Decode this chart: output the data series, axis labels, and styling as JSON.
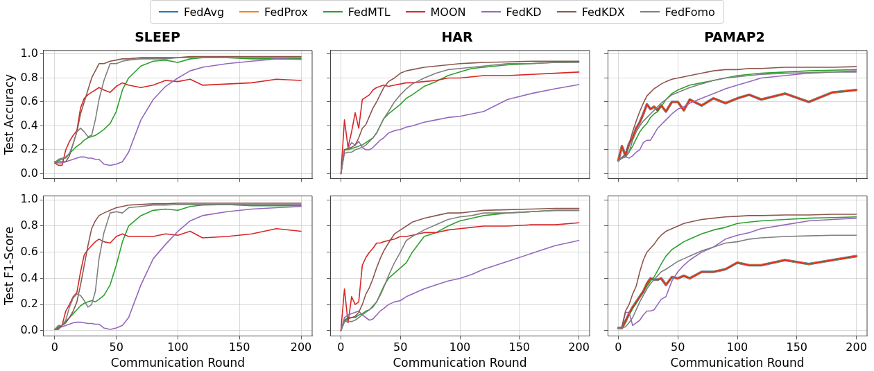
{
  "chart_data": [
    {
      "type": "line",
      "title": "SLEEP",
      "ylabel": "Test Accuracy",
      "grid": true,
      "tick_labels": "y",
      "xlim": [
        -9,
        209
      ],
      "xticks": [
        0,
        50,
        100,
        150,
        200
      ],
      "ylim": [
        -0.04,
        1.03
      ],
      "yticks": [
        {
          "value": 0,
          "label": "0.0"
        },
        {
          "value": 0.2,
          "label": "0.2"
        },
        {
          "value": 0.4,
          "label": "0.4"
        },
        {
          "value": 0.6,
          "label": "0.6"
        },
        {
          "value": 0.8,
          "label": "0.8"
        },
        {
          "value": 1,
          "label": "1.0"
        }
      ],
      "x": [
        0,
        3,
        6,
        9,
        12,
        15,
        18,
        21,
        24,
        27,
        30,
        33,
        36,
        40,
        45,
        50,
        55,
        60,
        70,
        80,
        90,
        100,
        110,
        120,
        140,
        160,
        180,
        200
      ],
      "series": [
        {
          "color": "#2ca02c",
          "values": [
            0.1,
            0.11,
            0.12,
            0.14,
            0.17,
            0.2,
            0.23,
            0.25,
            0.28,
            0.3,
            0.31,
            0.32,
            0.34,
            0.37,
            0.42,
            0.52,
            0.7,
            0.8,
            0.9,
            0.94,
            0.95,
            0.93,
            0.96,
            0.97,
            0.97,
            0.96,
            0.96,
            0.96
          ]
        },
        {
          "color": "#d62728",
          "values": [
            0.09,
            0.07,
            0.07,
            0.2,
            0.27,
            0.32,
            0.36,
            0.55,
            0.63,
            0.66,
            0.68,
            0.7,
            0.72,
            0.7,
            0.68,
            0.73,
            0.76,
            0.74,
            0.72,
            0.74,
            0.78,
            0.77,
            0.79,
            0.74,
            0.75,
            0.76,
            0.79,
            0.78
          ]
        },
        {
          "color": "#9467bd",
          "values": [
            0.09,
            0.09,
            0.09,
            0.1,
            0.11,
            0.12,
            0.13,
            0.14,
            0.14,
            0.13,
            0.13,
            0.12,
            0.12,
            0.08,
            0.07,
            0.08,
            0.1,
            0.18,
            0.45,
            0.62,
            0.73,
            0.8,
            0.86,
            0.89,
            0.92,
            0.94,
            0.96,
            0.955
          ]
        },
        {
          "color": "#8c564b",
          "values": [
            0.09,
            0.1,
            0.1,
            0.1,
            0.15,
            0.25,
            0.35,
            0.5,
            0.6,
            0.7,
            0.8,
            0.86,
            0.92,
            0.92,
            0.94,
            0.95,
            0.96,
            0.96,
            0.97,
            0.97,
            0.97,
            0.97,
            0.98,
            0.98,
            0.98,
            0.98,
            0.98,
            0.98
          ]
        },
        {
          "color": "#7f7f7f",
          "values": [
            0.09,
            0.12,
            0.13,
            0.13,
            0.17,
            0.25,
            0.35,
            0.38,
            0.35,
            0.31,
            0.32,
            0.45,
            0.62,
            0.78,
            0.92,
            0.92,
            0.94,
            0.95,
            0.96,
            0.96,
            0.96,
            0.97,
            0.97,
            0.97,
            0.97,
            0.97,
            0.97,
            0.97
          ]
        }
      ]
    },
    {
      "type": "line",
      "title": "HAR",
      "grid": true,
      "tick_labels": false,
      "xlim": [
        -9,
        209
      ],
      "xticks": [
        0,
        50,
        100,
        150,
        200
      ],
      "ylim": [
        -0.04,
        1.03
      ],
      "yticks": [
        0,
        0.2,
        0.4,
        0.6,
        0.8,
        1
      ],
      "x": [
        0,
        3,
        6,
        9,
        12,
        15,
        18,
        21,
        24,
        27,
        30,
        33,
        36,
        40,
        45,
        50,
        55,
        60,
        70,
        80,
        90,
        100,
        110,
        120,
        140,
        160,
        180,
        200
      ],
      "series": [
        {
          "color": "#2ca02c",
          "values": [
            0,
            0.2,
            0.2,
            0.21,
            0.22,
            0.23,
            0.24,
            0.26,
            0.28,
            0.3,
            0.34,
            0.4,
            0.46,
            0.5,
            0.54,
            0.58,
            0.63,
            0.66,
            0.73,
            0.77,
            0.82,
            0.85,
            0.88,
            0.89,
            0.91,
            0.92,
            0.93,
            0.935
          ]
        },
        {
          "color": "#d62728",
          "values": [
            0,
            0.45,
            0.22,
            0.35,
            0.51,
            0.38,
            0.62,
            0.64,
            0.66,
            0.7,
            0.72,
            0.73,
            0.74,
            0.73,
            0.74,
            0.75,
            0.76,
            0.76,
            0.77,
            0.78,
            0.8,
            0.8,
            0.81,
            0.82,
            0.82,
            0.83,
            0.84,
            0.85
          ]
        },
        {
          "color": "#9467bd",
          "values": [
            0,
            0.2,
            0.21,
            0.26,
            0.24,
            0.27,
            0.22,
            0.2,
            0.2,
            0.22,
            0.25,
            0.28,
            0.3,
            0.34,
            0.36,
            0.37,
            0.39,
            0.4,
            0.43,
            0.45,
            0.47,
            0.48,
            0.5,
            0.52,
            0.62,
            0.67,
            0.71,
            0.745
          ]
        },
        {
          "color": "#8c564b",
          "values": [
            0,
            0.2,
            0.21,
            0.22,
            0.24,
            0.3,
            0.38,
            0.41,
            0.48,
            0.55,
            0.6,
            0.66,
            0.72,
            0.77,
            0.8,
            0.84,
            0.86,
            0.87,
            0.89,
            0.9,
            0.91,
            0.92,
            0.925,
            0.93,
            0.935,
            0.94,
            0.94,
            0.94
          ]
        },
        {
          "color": "#7f7f7f",
          "values": [
            0,
            0.17,
            0.18,
            0.18,
            0.2,
            0.21,
            0.22,
            0.24,
            0.27,
            0.3,
            0.34,
            0.4,
            0.46,
            0.52,
            0.6,
            0.66,
            0.71,
            0.75,
            0.8,
            0.84,
            0.87,
            0.88,
            0.89,
            0.9,
            0.92,
            0.92,
            0.93,
            0.93
          ]
        }
      ]
    },
    {
      "type": "line",
      "title": "PAMAP2",
      "legend": "top",
      "grid": true,
      "tick_labels": false,
      "xlim": [
        -9,
        209
      ],
      "xticks": [
        0,
        50,
        100,
        150,
        200
      ],
      "ylim": [
        -0.04,
        1.03
      ],
      "yticks": [
        0,
        0.2,
        0.4,
        0.6,
        0.8,
        1
      ],
      "x": [
        0,
        3,
        6,
        9,
        12,
        15,
        18,
        21,
        24,
        27,
        30,
        33,
        36,
        40,
        45,
        50,
        55,
        60,
        70,
        80,
        90,
        100,
        110,
        120,
        140,
        160,
        180,
        200
      ],
      "series": [
        {
          "name": "FedAvg",
          "color": "#1f77b4",
          "values": [
            0.11,
            0.23,
            0.15,
            0.25,
            0.3,
            0.38,
            0.43,
            0.5,
            0.58,
            0.54,
            0.56,
            0.53,
            0.57,
            0.52,
            0.6,
            0.6,
            0.53,
            0.62,
            0.57,
            0.63,
            0.59,
            0.63,
            0.66,
            0.62,
            0.67,
            0.6,
            0.68,
            0.7
          ]
        },
        {
          "name": "FedProx",
          "color": "#ff7f0e",
          "values": [
            0.11,
            0.23,
            0.15,
            0.25,
            0.3,
            0.38,
            0.43,
            0.5,
            0.58,
            0.54,
            0.56,
            0.53,
            0.57,
            0.52,
            0.6,
            0.6,
            0.53,
            0.62,
            0.57,
            0.63,
            0.59,
            0.63,
            0.66,
            0.62,
            0.67,
            0.6,
            0.68,
            0.7
          ]
        },
        {
          "name": "FedMTL",
          "color": "#2ca02c",
          "values": [
            0.11,
            0.13,
            0.14,
            0.18,
            0.23,
            0.29,
            0.35,
            0.39,
            0.42,
            0.47,
            0.5,
            0.52,
            0.56,
            0.62,
            0.67,
            0.7,
            0.72,
            0.74,
            0.76,
            0.78,
            0.8,
            0.82,
            0.83,
            0.84,
            0.85,
            0.86,
            0.865,
            0.87
          ]
        },
        {
          "name": "MOON",
          "color": "#d62728",
          "values": [
            0.11,
            0.23,
            0.15,
            0.25,
            0.3,
            0.38,
            0.43,
            0.5,
            0.58,
            0.54,
            0.56,
            0.53,
            0.57,
            0.52,
            0.6,
            0.6,
            0.53,
            0.62,
            0.57,
            0.63,
            0.59,
            0.63,
            0.66,
            0.62,
            0.67,
            0.6,
            0.68,
            0.7
          ]
        },
        {
          "name": "FedKD",
          "color": "#9467bd",
          "values": [
            0.11,
            0.14,
            0.14,
            0.13,
            0.15,
            0.18,
            0.2,
            0.26,
            0.28,
            0.28,
            0.33,
            0.38,
            0.41,
            0.45,
            0.5,
            0.54,
            0.56,
            0.59,
            0.63,
            0.67,
            0.71,
            0.74,
            0.77,
            0.8,
            0.82,
            0.84,
            0.85,
            0.86
          ]
        },
        {
          "name": "FedKDX",
          "color": "#8c564b",
          "values": [
            0.11,
            0.13,
            0.17,
            0.25,
            0.35,
            0.44,
            0.52,
            0.59,
            0.65,
            0.68,
            0.71,
            0.73,
            0.75,
            0.77,
            0.79,
            0.8,
            0.81,
            0.82,
            0.84,
            0.86,
            0.87,
            0.87,
            0.88,
            0.88,
            0.89,
            0.89,
            0.89,
            0.895
          ]
        },
        {
          "name": "FedFomo",
          "color": "#7f7f7f",
          "values": [
            0.11,
            0.13,
            0.14,
            0.18,
            0.28,
            0.35,
            0.4,
            0.44,
            0.47,
            0.5,
            0.53,
            0.56,
            0.59,
            0.62,
            0.66,
            0.68,
            0.7,
            0.72,
            0.75,
            0.78,
            0.8,
            0.81,
            0.82,
            0.83,
            0.84,
            0.845,
            0.85,
            0.85
          ]
        }
      ]
    },
    {
      "type": "line",
      "xlabel": "Communication Round",
      "ylabel": "Test F1-Score",
      "grid": true,
      "xlim": [
        -9,
        209
      ],
      "xticks": [
        0,
        50,
        100,
        150,
        200
      ],
      "ylim": [
        -0.04,
        1.03
      ],
      "yticks": [
        {
          "value": 0,
          "label": "0.0"
        },
        {
          "value": 0.2,
          "label": "0.2"
        },
        {
          "value": 0.4,
          "label": "0.4"
        },
        {
          "value": 0.6,
          "label": "0.6"
        },
        {
          "value": 0.8,
          "label": "0.8"
        },
        {
          "value": 1,
          "label": "1.0"
        }
      ],
      "x": [
        0,
        3,
        6,
        9,
        12,
        15,
        18,
        21,
        24,
        27,
        30,
        33,
        36,
        40,
        45,
        50,
        55,
        60,
        70,
        80,
        90,
        100,
        110,
        120,
        140,
        160,
        180,
        200
      ],
      "series": [
        {
          "color": "#2ca02c",
          "values": [
            0.01,
            0.03,
            0.04,
            0.07,
            0.1,
            0.13,
            0.16,
            0.19,
            0.21,
            0.22,
            0.23,
            0.22,
            0.24,
            0.27,
            0.35,
            0.5,
            0.68,
            0.8,
            0.88,
            0.92,
            0.93,
            0.92,
            0.95,
            0.96,
            0.965,
            0.955,
            0.955,
            0.955
          ]
        },
        {
          "color": "#d62728",
          "values": [
            0.01,
            0.01,
            0.04,
            0.15,
            0.2,
            0.26,
            0.29,
            0.45,
            0.58,
            0.62,
            0.65,
            0.68,
            0.7,
            0.68,
            0.67,
            0.72,
            0.74,
            0.72,
            0.72,
            0.72,
            0.74,
            0.73,
            0.76,
            0.71,
            0.72,
            0.74,
            0.78,
            0.76
          ]
        },
        {
          "color": "#9467bd",
          "values": [
            0.01,
            0.02,
            0.03,
            0.04,
            0.05,
            0.06,
            0.065,
            0.065,
            0.06,
            0.055,
            0.055,
            0.05,
            0.05,
            0.02,
            0.01,
            0.02,
            0.04,
            0.1,
            0.35,
            0.55,
            0.66,
            0.76,
            0.84,
            0.88,
            0.91,
            0.93,
            0.94,
            0.95
          ]
        },
        {
          "color": "#8c564b",
          "values": [
            0.01,
            0.02,
            0.04,
            0.06,
            0.1,
            0.15,
            0.22,
            0.35,
            0.5,
            0.65,
            0.78,
            0.84,
            0.88,
            0.9,
            0.92,
            0.94,
            0.95,
            0.96,
            0.965,
            0.97,
            0.97,
            0.975,
            0.975,
            0.975,
            0.975,
            0.975,
            0.975,
            0.975
          ]
        },
        {
          "color": "#7f7f7f",
          "values": [
            0.01,
            0.04,
            0.04,
            0.08,
            0.18,
            0.25,
            0.28,
            0.27,
            0.23,
            0.18,
            0.2,
            0.3,
            0.55,
            0.75,
            0.9,
            0.91,
            0.9,
            0.94,
            0.95,
            0.96,
            0.96,
            0.965,
            0.965,
            0.965,
            0.965,
            0.965,
            0.965,
            0.965
          ]
        }
      ]
    },
    {
      "type": "line",
      "xlabel": "Communication Round",
      "grid": true,
      "tick_labels": "x",
      "xlim": [
        -9,
        209
      ],
      "xticks": [
        0,
        50,
        100,
        150,
        200
      ],
      "ylim": [
        -0.04,
        1.03
      ],
      "yticks": [
        0,
        0.2,
        0.4,
        0.6,
        0.8,
        1
      ],
      "x": [
        0,
        3,
        6,
        9,
        12,
        15,
        18,
        21,
        24,
        27,
        30,
        33,
        36,
        40,
        45,
        50,
        55,
        60,
        70,
        80,
        90,
        100,
        110,
        120,
        140,
        160,
        180,
        200
      ],
      "series": [
        {
          "color": "#2ca02c",
          "values": [
            0,
            0.08,
            0.1,
            0.1,
            0.1,
            0.12,
            0.13,
            0.15,
            0.16,
            0.19,
            0.22,
            0.28,
            0.34,
            0.4,
            0.44,
            0.48,
            0.52,
            0.6,
            0.72,
            0.75,
            0.8,
            0.84,
            0.86,
            0.88,
            0.9,
            0.91,
            0.92,
            0.92
          ]
        },
        {
          "color": "#d62728",
          "values": [
            0,
            0.32,
            0.06,
            0.26,
            0.2,
            0.22,
            0.5,
            0.56,
            0.6,
            0.63,
            0.67,
            0.67,
            0.68,
            0.69,
            0.7,
            0.72,
            0.72,
            0.73,
            0.75,
            0.75,
            0.77,
            0.78,
            0.79,
            0.8,
            0.8,
            0.81,
            0.81,
            0.825
          ]
        },
        {
          "color": "#9467bd",
          "values": [
            0,
            0.1,
            0.12,
            0.13,
            0.14,
            0.15,
            0.12,
            0.1,
            0.08,
            0.09,
            0.12,
            0.15,
            0.17,
            0.2,
            0.22,
            0.23,
            0.26,
            0.28,
            0.32,
            0.35,
            0.38,
            0.4,
            0.43,
            0.47,
            0.53,
            0.59,
            0.65,
            0.69
          ]
        },
        {
          "color": "#8c564b",
          "values": [
            0,
            0.07,
            0.09,
            0.1,
            0.11,
            0.14,
            0.2,
            0.28,
            0.33,
            0.4,
            0.48,
            0.55,
            0.61,
            0.67,
            0.74,
            0.77,
            0.8,
            0.83,
            0.86,
            0.88,
            0.9,
            0.9,
            0.91,
            0.92,
            0.925,
            0.93,
            0.935,
            0.935
          ]
        },
        {
          "color": "#7f7f7f",
          "values": [
            0,
            0.07,
            0.07,
            0.07,
            0.08,
            0.1,
            0.12,
            0.14,
            0.16,
            0.18,
            0.22,
            0.27,
            0.33,
            0.42,
            0.52,
            0.6,
            0.69,
            0.72,
            0.77,
            0.81,
            0.85,
            0.87,
            0.88,
            0.9,
            0.9,
            0.91,
            0.92,
            0.92
          ]
        }
      ]
    },
    {
      "type": "line",
      "xlabel": "Communication Round",
      "grid": true,
      "tick_labels": "x",
      "xlim": [
        -9,
        209
      ],
      "xticks": [
        0,
        50,
        100,
        150,
        200
      ],
      "ylim": [
        -0.04,
        1.03
      ],
      "yticks": [
        0,
        0.2,
        0.4,
        0.6,
        0.8,
        1
      ],
      "x": [
        0,
        3,
        6,
        9,
        12,
        15,
        18,
        21,
        24,
        27,
        30,
        33,
        36,
        40,
        45,
        50,
        55,
        60,
        70,
        80,
        90,
        100,
        110,
        120,
        140,
        160,
        180,
        200
      ],
      "series": [
        {
          "color": "#1f77b4",
          "values": [
            0.02,
            0.02,
            0.07,
            0.13,
            0.18,
            0.22,
            0.26,
            0.3,
            0.36,
            0.4,
            0.39,
            0.39,
            0.4,
            0.35,
            0.41,
            0.4,
            0.42,
            0.4,
            0.45,
            0.45,
            0.47,
            0.52,
            0.5,
            0.5,
            0.54,
            0.51,
            0.54,
            0.57
          ]
        },
        {
          "color": "#ff7f0e",
          "values": [
            0.02,
            0.02,
            0.07,
            0.13,
            0.18,
            0.22,
            0.26,
            0.3,
            0.36,
            0.4,
            0.39,
            0.39,
            0.4,
            0.35,
            0.41,
            0.4,
            0.42,
            0.4,
            0.45,
            0.45,
            0.47,
            0.52,
            0.5,
            0.5,
            0.54,
            0.51,
            0.54,
            0.57
          ]
        },
        {
          "color": "#2ca02c",
          "values": [
            0.02,
            0.03,
            0.08,
            0.12,
            0.17,
            0.21,
            0.26,
            0.3,
            0.34,
            0.38,
            0.41,
            0.46,
            0.51,
            0.57,
            0.62,
            0.65,
            0.68,
            0.7,
            0.74,
            0.77,
            0.79,
            0.82,
            0.83,
            0.84,
            0.85,
            0.86,
            0.865,
            0.87
          ]
        },
        {
          "color": "#d62728",
          "values": [
            0.02,
            0.02,
            0.07,
            0.13,
            0.18,
            0.22,
            0.26,
            0.3,
            0.36,
            0.4,
            0.39,
            0.39,
            0.4,
            0.35,
            0.41,
            0.4,
            0.42,
            0.4,
            0.45,
            0.45,
            0.47,
            0.52,
            0.5,
            0.5,
            0.54,
            0.51,
            0.54,
            0.57
          ]
        },
        {
          "color": "#9467bd",
          "values": [
            0.02,
            0.02,
            0.14,
            0.14,
            0.04,
            0.06,
            0.08,
            0.12,
            0.15,
            0.15,
            0.16,
            0.2,
            0.24,
            0.26,
            0.38,
            0.45,
            0.5,
            0.54,
            0.6,
            0.64,
            0.7,
            0.73,
            0.75,
            0.78,
            0.81,
            0.84,
            0.85,
            0.86
          ]
        },
        {
          "color": "#8c564b",
          "values": [
            0.02,
            0.03,
            0.15,
            0.2,
            0.28,
            0.34,
            0.45,
            0.54,
            0.6,
            0.63,
            0.66,
            0.7,
            0.73,
            0.76,
            0.78,
            0.8,
            0.82,
            0.83,
            0.85,
            0.86,
            0.87,
            0.875,
            0.88,
            0.88,
            0.885,
            0.885,
            0.89,
            0.89
          ]
        },
        {
          "color": "#7f7f7f",
          "values": [
            0.02,
            0.02,
            0.03,
            0.06,
            0.1,
            0.16,
            0.22,
            0.27,
            0.32,
            0.36,
            0.39,
            0.42,
            0.45,
            0.47,
            0.5,
            0.53,
            0.55,
            0.57,
            0.61,
            0.64,
            0.67,
            0.68,
            0.7,
            0.71,
            0.72,
            0.725,
            0.73,
            0.73
          ]
        }
      ]
    }
  ]
}
